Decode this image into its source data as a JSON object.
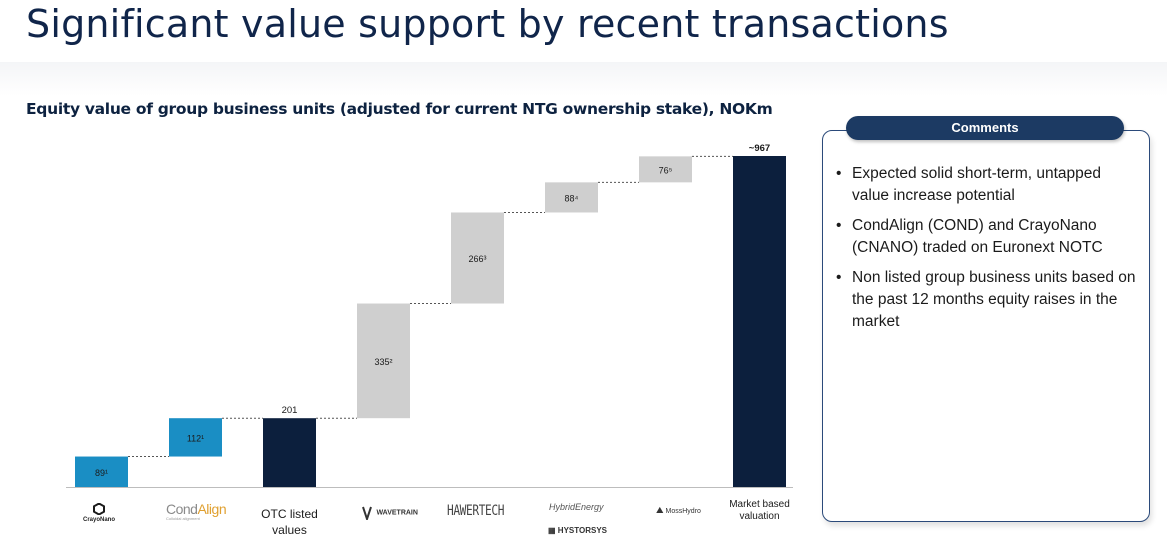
{
  "page": {
    "title": "Significant value support by recent transactions"
  },
  "chart_data": {
    "type": "waterfall",
    "title": "Equity value of group business units (adjusted for current NTG ownership stake), NOKm",
    "categories": [
      "CrayoNano",
      "CondAlign",
      "OTC listed values",
      "WaveTrain",
      "Hawertech",
      "HybridEnergy / Hystorsys",
      "MossHydro",
      "Market based valuation"
    ],
    "values": [
      89,
      112,
      201,
      335,
      266,
      88,
      76,
      967
    ],
    "labels": [
      "89¹",
      "112¹",
      "201",
      "335²",
      "266³",
      "88⁴",
      "76⁵",
      "~967"
    ],
    "kinds": [
      "step",
      "step",
      "total",
      "step",
      "step",
      "step",
      "step",
      "total"
    ],
    "colors": {
      "step_listed": "#1a8ec4",
      "total": "#0c1f3d",
      "step_unlisted": "#cfcfcf"
    },
    "ylim": [
      0,
      967
    ],
    "grid": false,
    "legend": "none"
  },
  "category_labels": {
    "otc": [
      "OTC listed",
      "values"
    ],
    "market": [
      "Market based",
      "valuation"
    ]
  },
  "logos": {
    "crayonano": "CrayoNano",
    "condalign_a": "Cond",
    "condalign_b": "Align",
    "condalign_sub": "Colloidal alignment",
    "wavetrain": "WAVETRAIN",
    "hawertech": "HAWERTECH",
    "hybrid": "HybridEnergy",
    "hystorsys": "HYSTORSYS",
    "mosshydro": "MossHydro"
  },
  "comments": {
    "header": "Comments",
    "items": [
      "Expected solid short-term, untapped value increase potential",
      "CondAlign (COND) and CrayoNano (CNANO) traded on Euronext NOTC",
      "Non listed group business units based on the past 12 months equity raises in the market"
    ]
  }
}
